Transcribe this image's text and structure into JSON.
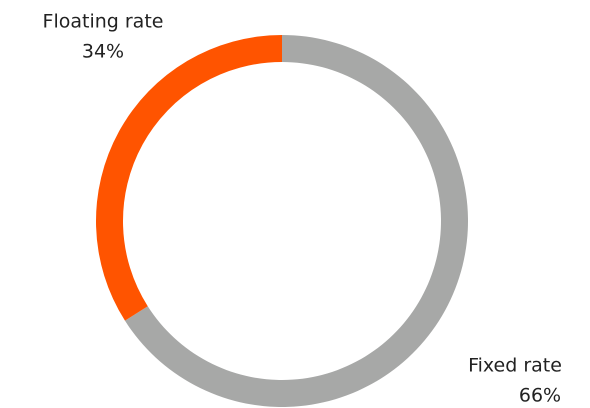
{
  "chart_data": {
    "type": "donut",
    "categories": [
      "Fixed rate",
      "Floating rate"
    ],
    "values": [
      66,
      34
    ],
    "value_labels": [
      "66%",
      "34%"
    ],
    "colors": [
      "#a7a8a7",
      "#ff5400"
    ]
  }
}
